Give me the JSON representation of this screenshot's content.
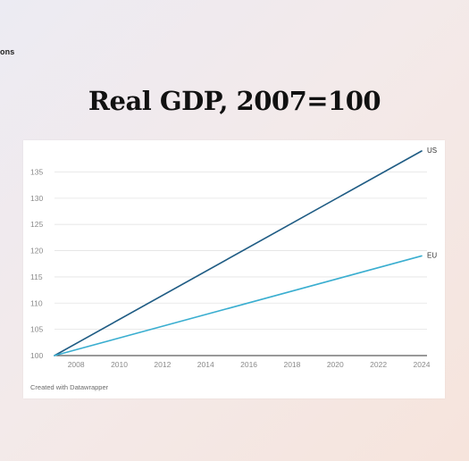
{
  "slide": {
    "header_fragment": "ons",
    "title": "Real GDP, 2007=100"
  },
  "chart_data": {
    "type": "line",
    "title": "Real GDP, 2007=100",
    "xlabel": "",
    "ylabel": "",
    "xlim": [
      2007,
      2024
    ],
    "ylim": [
      100,
      139
    ],
    "x_ticks": [
      2008,
      2010,
      2012,
      2014,
      2016,
      2018,
      2020,
      2022,
      2024
    ],
    "y_ticks": [
      100,
      105,
      110,
      115,
      120,
      125,
      130,
      135
    ],
    "grid": true,
    "series": [
      {
        "name": "US",
        "color": "#1f5c84",
        "x": [
          2007,
          2024
        ],
        "values": [
          100,
          139
        ]
      },
      {
        "name": "EU",
        "color": "#3aaed0",
        "x": [
          2007,
          2024
        ],
        "values": [
          100,
          119
        ]
      }
    ],
    "credit": "Created with Datawrapper"
  }
}
